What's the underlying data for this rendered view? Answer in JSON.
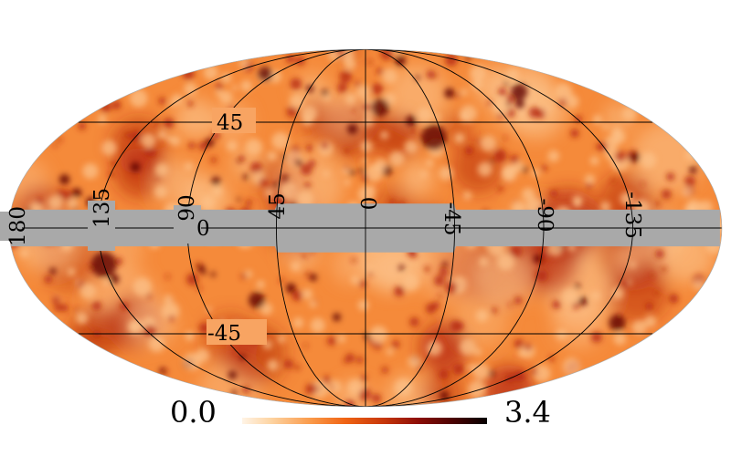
{
  "map": {
    "projection": "mollweide",
    "colors": {
      "mask": "#a9a9a9",
      "graticule": "#000000",
      "background": "#ffffff",
      "base": "#f58a3a",
      "light_spot": "#fcc28a",
      "dark_spot": "#b3240a",
      "darkest_spot": "#5c0303"
    },
    "graticule": {
      "meridians": [
        -135,
        -90,
        -45,
        0,
        45,
        90,
        135
      ],
      "parallels": [
        -45,
        45
      ]
    },
    "labels": {
      "lon_m180": "180",
      "lon_135": "135",
      "lon_90": "90",
      "lon_45": "45",
      "lon_0": "0",
      "lon_m45": "-45",
      "lon_m90": "-90",
      "lon_m135": "-135",
      "lat_0": "0",
      "lat_45": "45",
      "lat_m45": "-45"
    },
    "mask": {
      "galactic_band_half_width_deg": 7.5,
      "center_extension_lon_range": [
        -45,
        45
      ],
      "center_extension_half_width_deg": 10
    }
  },
  "colorbar": {
    "min_label": "0.0",
    "max_label": "3.4",
    "min_value": 0.0,
    "max_value": 3.4,
    "colormap": "hot-inverted"
  }
}
